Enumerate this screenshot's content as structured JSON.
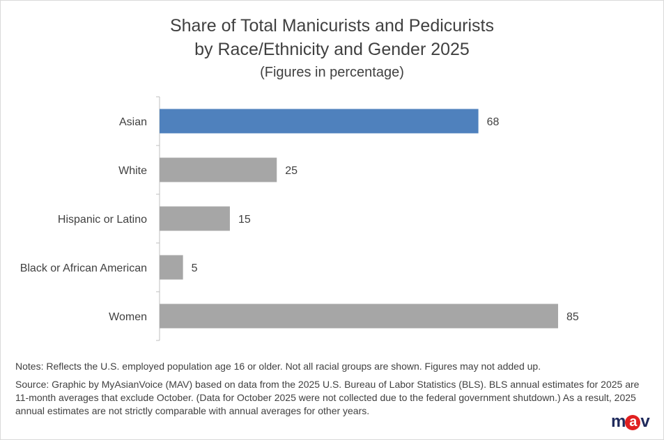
{
  "chart_data": {
    "type": "bar",
    "orientation": "horizontal",
    "title": [
      "Share of Total Manicurists and Pedicurists",
      "by Race/Ethnicity and Gender 2025"
    ],
    "subtitle": "(Figures in percentage)",
    "categories": [
      "Asian",
      "White",
      "Hispanic or Latino",
      "Black or African American",
      "Women"
    ],
    "values": [
      68,
      25,
      15,
      5,
      85
    ],
    "colors": [
      "#4f81bd",
      "#a6a6a6",
      "#a6a6a6",
      "#a6a6a6",
      "#a6a6a6"
    ],
    "xlim": [
      0,
      85
    ],
    "grid": false,
    "data_labels": true
  },
  "notes": "Notes:  Reflects the U.S. employed population age 16 or older. Not all racial groups are shown. Figures may not added up.",
  "source": "Source: Graphic by MyAsianVoice (MAV) based on data from the 2025 U.S. Bureau of Labor Statistics (BLS). BLS annual estimates for 2025 are 11-month averages that exclude October. (Data for October 2025 were not collected due to the federal  government shutdown.) As a result, 2025 annual estimates are not strictly comparable with annual averages for other years.",
  "logo": "mav"
}
